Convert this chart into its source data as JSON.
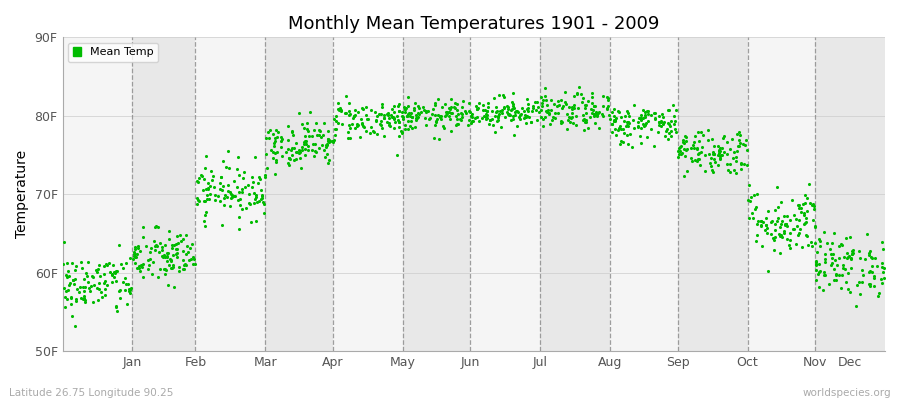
{
  "title": "Monthly Mean Temperatures 1901 - 2009",
  "ylabel": "Temperature",
  "xlabel_labels": [
    "Jan",
    "Feb",
    "Mar",
    "Apr",
    "May",
    "Jun",
    "Jul",
    "Aug",
    "Sep",
    "Oct",
    "Nov",
    "Dec"
  ],
  "ytick_labels": [
    "50F",
    "60F",
    "70F",
    "80F",
    "90F"
  ],
  "ytick_values": [
    50,
    60,
    70,
    80,
    90
  ],
  "ylim": [
    50,
    90
  ],
  "legend_label": "Mean Temp",
  "dot_color": "#00bb00",
  "bg_color_light": "#f5f5f5",
  "bg_color_dark": "#e8e8e8",
  "footer_left": "Latitude 26.75 Longitude 90.25",
  "footer_right": "worldspecies.org",
  "monthly_means": [
    58.5,
    62.0,
    70.5,
    76.5,
    79.5,
    80.0,
    80.5,
    80.5,
    79.0,
    75.5,
    66.5,
    61.0
  ],
  "monthly_stds": [
    2.0,
    1.8,
    1.8,
    1.5,
    1.3,
    1.0,
    1.0,
    1.2,
    1.3,
    1.5,
    2.2,
    2.0
  ],
  "n_years": 109,
  "seed": 42,
  "days_in_month": [
    31,
    28,
    31,
    30,
    31,
    30,
    31,
    31,
    30,
    31,
    30,
    31
  ]
}
